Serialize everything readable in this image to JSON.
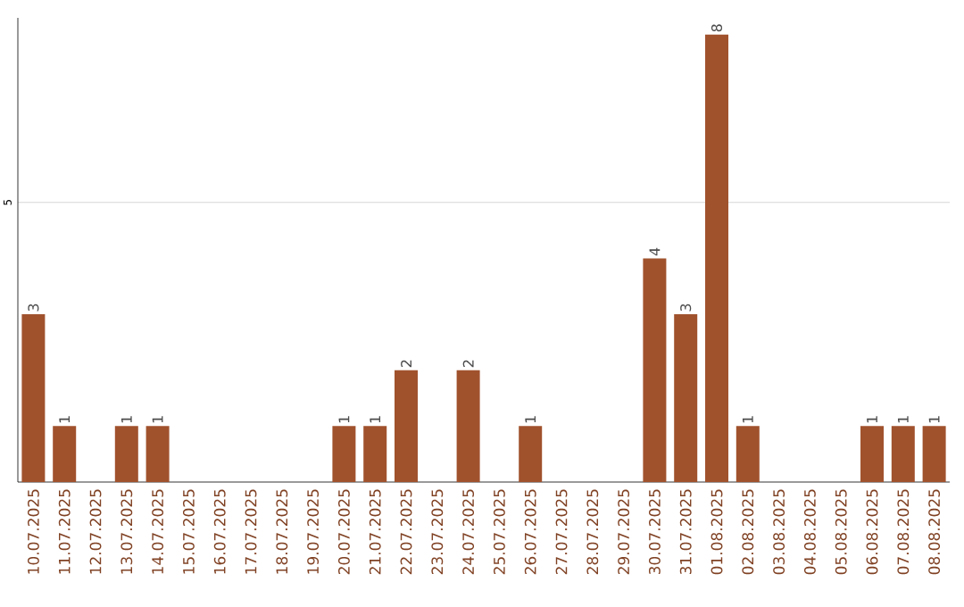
{
  "chart_data": {
    "type": "bar",
    "categories": [
      "10.07.2025",
      "11.07.2025",
      "12.07.2025",
      "13.07.2025",
      "14.07.2025",
      "15.07.2025",
      "16.07.2025",
      "17.07.2025",
      "18.07.2025",
      "19.07.2025",
      "20.07.2025",
      "21.07.2025",
      "22.07.2025",
      "23.07.2025",
      "24.07.2025",
      "25.07.2025",
      "26.07.2025",
      "27.07.2025",
      "28.07.2025",
      "29.07.2025",
      "30.07.2025",
      "31.07.2025",
      "01.08.2025",
      "02.08.2025",
      "03.08.2025",
      "04.08.2025",
      "05.08.2025",
      "06.08.2025",
      "07.08.2025",
      "08.08.2025"
    ],
    "values": [
      3,
      1,
      0,
      1,
      1,
      0,
      0,
      0,
      0,
      0,
      1,
      1,
      2,
      0,
      2,
      0,
      1,
      0,
      0,
      0,
      4,
      3,
      8,
      1,
      0,
      0,
      0,
      1,
      1,
      1
    ],
    "value_labels": [
      "3",
      "1",
      null,
      "1",
      "1",
      null,
      null,
      null,
      null,
      null,
      "1",
      "1",
      "2",
      null,
      "2",
      null,
      "1",
      null,
      null,
      null,
      "4",
      "3",
      "8",
      "1",
      null,
      null,
      null,
      "1",
      "1",
      "1"
    ],
    "color": "#a0522d",
    "ylim": [
      0,
      8.3
    ],
    "yticks": [
      5
    ],
    "grid": "y"
  }
}
